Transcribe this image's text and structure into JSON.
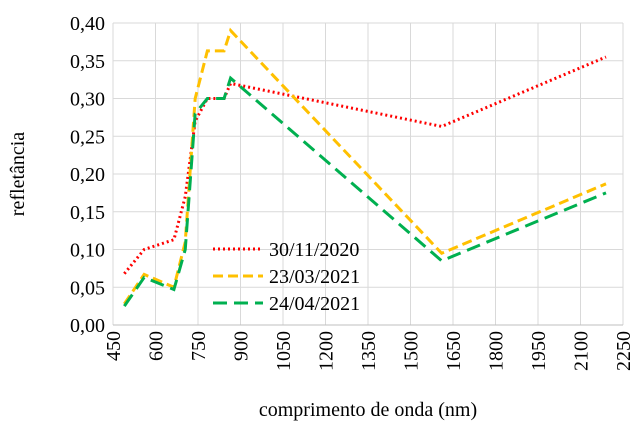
{
  "chart_data": {
    "type": "line",
    "xlabel": "comprimento de onda (nm)",
    "ylabel": "refletância",
    "x": [
      490,
      560,
      665,
      705,
      740,
      783,
      842,
      865,
      1610,
      2190
    ],
    "series": [
      {
        "name": "30/11/2020",
        "color": "#ff0000",
        "dash": "dotted",
        "values": [
          0.068,
          0.1,
          0.113,
          0.17,
          0.27,
          0.3,
          0.3,
          0.32,
          0.263,
          0.355
        ]
      },
      {
        "name": "23/03/2021",
        "color": "#ffc000",
        "dash": "dashed",
        "values": [
          0.028,
          0.067,
          0.05,
          0.11,
          0.3,
          0.363,
          0.363,
          0.39,
          0.095,
          0.187
        ]
      },
      {
        "name": "24/04/2021",
        "color": "#00b050",
        "dash": "longdash",
        "values": [
          0.025,
          0.063,
          0.047,
          0.1,
          0.28,
          0.3,
          0.3,
          0.327,
          0.085,
          0.175
        ]
      }
    ],
    "xlim": [
      450,
      2250
    ],
    "xticks": [
      450,
      600,
      750,
      900,
      1050,
      1200,
      1350,
      1500,
      1650,
      1800,
      1950,
      2100,
      2250
    ],
    "ylim": [
      0,
      0.4
    ],
    "yticks": [
      {
        "value": 0,
        "label": "0,00"
      },
      {
        "value": 0.05,
        "label": "0,05"
      },
      {
        "value": 0.1,
        "label": "0,10"
      },
      {
        "value": 0.15,
        "label": "0,15"
      },
      {
        "value": 0.2,
        "label": "0,20"
      },
      {
        "value": 0.25,
        "label": "0,25"
      },
      {
        "value": 0.3,
        "label": "0,30"
      },
      {
        "value": 0.35,
        "label": "0,35"
      },
      {
        "value": 0.4,
        "label": "0,40"
      }
    ],
    "grid": true
  }
}
